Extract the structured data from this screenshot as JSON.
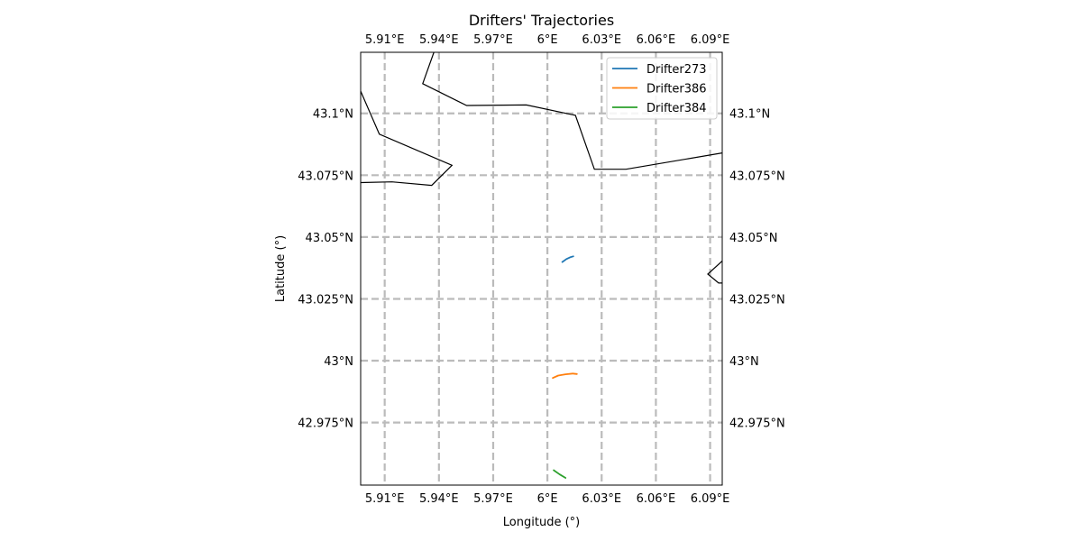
{
  "chart_data": {
    "type": "line",
    "title": "Drifters' Trajectories",
    "xlabel": "Longitude (°)",
    "ylabel": "Latitude (°)",
    "xlim": [
      5.8967,
      6.0967
    ],
    "ylim": [
      42.9497,
      43.1247
    ],
    "grid": true,
    "legend_position": "top-right",
    "x_ticks": [
      5.91,
      5.94,
      5.97,
      6.0,
      6.03,
      6.06,
      6.09
    ],
    "x_tick_labels": [
      "5.91°E",
      "5.94°E",
      "5.97°E",
      "6°E",
      "6.03°E",
      "6.06°E",
      "6.09°E"
    ],
    "y_ticks": [
      42.975,
      43.0,
      43.025,
      43.05,
      43.075,
      43.1
    ],
    "y_tick_labels": [
      "42.975°N",
      "43°N",
      "43.025°N",
      "43.05°N",
      "43.075°N",
      "43.1°N"
    ],
    "series": [
      {
        "name": "Drifter273",
        "color": "#1f77b4",
        "x": [
          6.0082,
          6.0105,
          6.0125,
          6.0143
        ],
        "y": [
          43.0399,
          43.0411,
          43.0418,
          43.0422
        ]
      },
      {
        "name": "Drifter386",
        "color": "#ff7f0e",
        "x": [
          6.003,
          6.006,
          6.01,
          6.014,
          6.0163
        ],
        "y": [
          42.993,
          42.994,
          42.9945,
          42.9948,
          42.9946
        ]
      },
      {
        "name": "Drifter384",
        "color": "#2ca02c",
        "x": [
          6.0035,
          6.0068,
          6.01
        ],
        "y": [
          42.9557,
          42.954,
          42.9526
        ]
      }
    ],
    "coastlines": [
      {
        "x": [
          5.8967,
          5.907,
          5.9472,
          5.936,
          5.914,
          5.8967
        ],
        "y": [
          43.109,
          43.0916,
          43.079,
          43.0709,
          43.0723,
          43.072
        ]
      },
      {
        "x": [
          5.9372,
          5.931,
          5.9553,
          5.9883,
          6.0155,
          6.026,
          6.0435,
          6.0967
        ],
        "y": [
          43.1247,
          43.112,
          43.1032,
          43.1034,
          43.0992,
          43.0774,
          43.0774,
          43.084
        ]
      },
      {
        "x": [
          6.0967,
          6.0887,
          6.0947,
          6.0967
        ],
        "y": [
          43.0403,
          43.035,
          43.0314,
          43.0314
        ]
      }
    ],
    "colors": {
      "grid": "#bbbbbb",
      "coastline": "#000000"
    }
  }
}
